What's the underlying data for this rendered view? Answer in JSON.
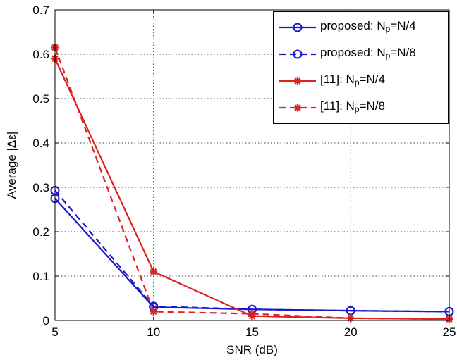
{
  "chart_data": {
    "type": "line",
    "xlabel": "SNR (dB)",
    "ylabel": "Average |Δε|",
    "x": [
      5,
      10,
      15,
      20,
      25
    ],
    "xlim": [
      5,
      25
    ],
    "ylim": [
      0,
      0.7
    ],
    "xticks": [
      "5",
      "10",
      "15",
      "20",
      "25"
    ],
    "yticks": [
      "0",
      "0.1",
      "0.2",
      "0.3",
      "0.4",
      "0.5",
      "0.6",
      "0.7"
    ],
    "grid": true,
    "legend_position": "top-right",
    "series": [
      {
        "name": "proposed: Np=N/4",
        "label_main": "proposed: N",
        "label_sub": "p",
        "label_tail": "=N/4",
        "values": [
          0.275,
          0.03,
          0.025,
          0.022,
          0.02
        ],
        "color": "#1a1acc",
        "dash": "solid",
        "marker": "circle"
      },
      {
        "name": "proposed: Np=N/8",
        "label_main": "proposed: N",
        "label_sub": "p",
        "label_tail": "=N/8",
        "values": [
          0.293,
          0.032,
          0.025,
          0.022,
          0.02
        ],
        "color": "#1a1acc",
        "dash": "dashed",
        "marker": "circle"
      },
      {
        "name": "[11]: Np=N/4",
        "label_main": "[11]: N",
        "label_sub": "p",
        "label_tail": "=N/4",
        "values": [
          0.59,
          0.11,
          0.01,
          0.005,
          0.003
        ],
        "color": "#dd2222",
        "dash": "solid",
        "marker": "star"
      },
      {
        "name": "[11]: Np=N/8",
        "label_main": "[11]: N",
        "label_sub": "p",
        "label_tail": "=N/8",
        "values": [
          0.615,
          0.02,
          0.015,
          0.005,
          0.003
        ],
        "color": "#dd2222",
        "dash": "dashed",
        "marker": "star"
      }
    ]
  }
}
